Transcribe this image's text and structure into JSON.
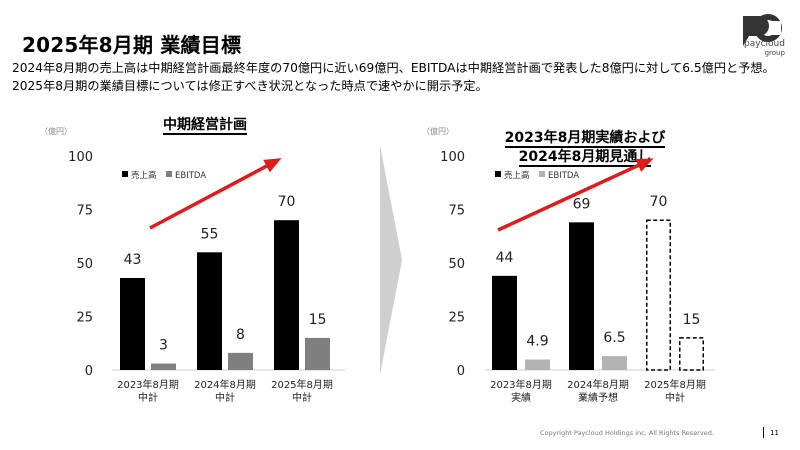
{
  "page": {
    "title": "2025年8月期 業績目標",
    "description": "2024年8月期の売上高は中期経営計画最終年度の70億円に近い69億円、EBITDAは中期経営計画で発表した8億円に対して6.5億円と予想。2025年8月期の業績目標については修正すべき状況となった時点で速やかに開示予定。",
    "logo_text": "paycloud",
    "logo_sub": "group",
    "footer": "Copyright Paycloud Holdings inc. All Rights Reserved.",
    "page_number": "11"
  },
  "colors": {
    "revenue": "#000000",
    "ebitda_plan": "#7f7f7f",
    "ebitda_actual": "#b3b3b3",
    "trend_arrow": "#e01b1b",
    "divider": "#c8c8c8"
  },
  "chart_data": [
    {
      "type": "bar",
      "title": "中期経営計画",
      "unit_label": "（億円）",
      "ylim": [
        0,
        100
      ],
      "yticks": [
        0,
        25,
        50,
        75,
        100
      ],
      "categories": [
        "2023年8月期\n中計",
        "2024年8月期\n中計",
        "2025年8月期\n中計"
      ],
      "series": [
        {
          "name": "売上高",
          "values": [
            43,
            55,
            70
          ],
          "labels": [
            "43",
            "55",
            "70"
          ],
          "style": [
            "solid",
            "solid",
            "solid"
          ]
        },
        {
          "name": "EBITDA",
          "values": [
            3,
            8,
            15
          ],
          "labels": [
            "3",
            "8",
            "15"
          ],
          "style": [
            "solid",
            "solid",
            "solid"
          ]
        }
      ],
      "legend": "top-left"
    },
    {
      "type": "bar",
      "title": "2023年8月期実績および\n2024年8月期見通し",
      "unit_label": "（億円）",
      "ylim": [
        0,
        100
      ],
      "yticks": [
        0,
        25,
        50,
        75,
        100
      ],
      "categories": [
        "2023年8月期\n実績",
        "2024年8月期\n業績予想",
        "2025年8月期\n中計"
      ],
      "series": [
        {
          "name": "売上高",
          "values": [
            44,
            69,
            70
          ],
          "labels": [
            "44",
            "69",
            "70"
          ],
          "style": [
            "solid",
            "solid",
            "dashed"
          ]
        },
        {
          "name": "EBITDA",
          "values": [
            4.9,
            6.5,
            15
          ],
          "labels": [
            "4.9",
            "6.5",
            "15"
          ],
          "style": [
            "solid",
            "solid",
            "dashed"
          ]
        }
      ],
      "legend": "top-left"
    }
  ]
}
